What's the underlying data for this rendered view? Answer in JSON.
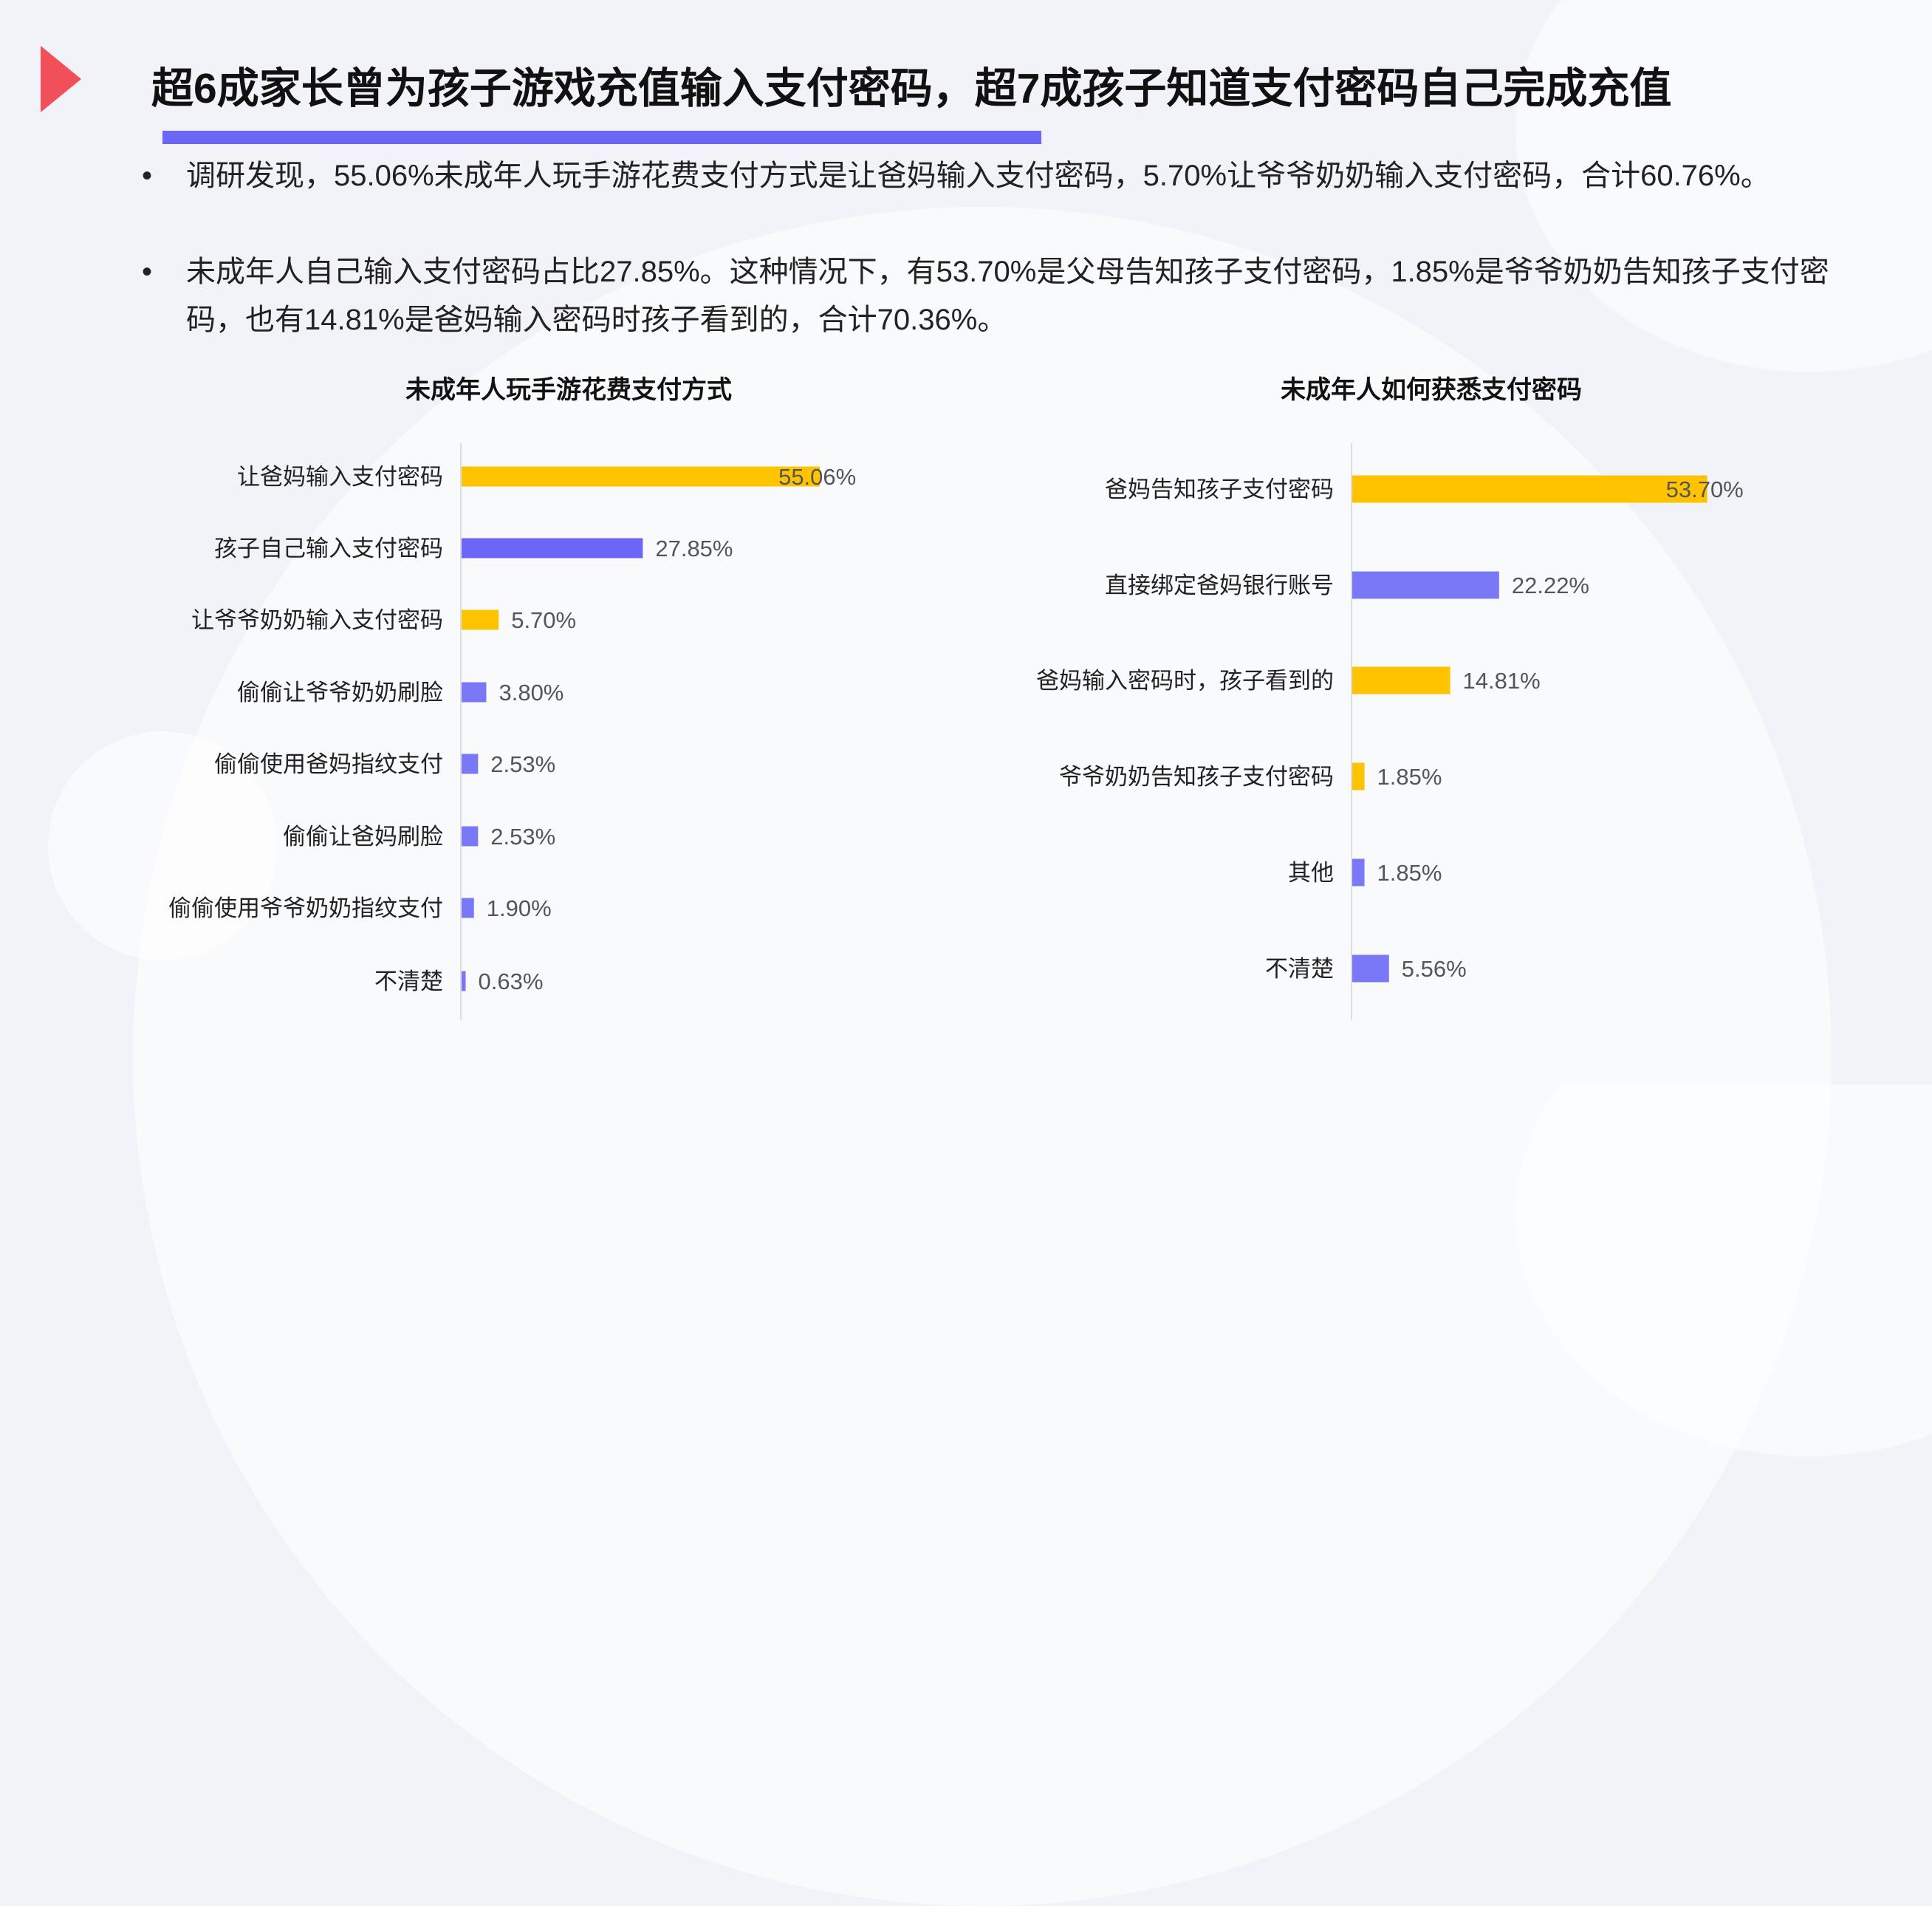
{
  "title": "超6成家长曾为孩子游戏充值输入支付密码，超7成孩子知道支付密码自己完成充值",
  "bullets": [
    "调研发现，55.06%未成年人玩手游花费支付方式是让爸妈输入支付密码，5.70%让爷爷奶奶输入支付密码，合计60.76%。",
    "未成年人自己输入支付密码占比27.85%。这种情况下，有53.70%是父母告知孩子支付密码，1.85%是爷爷奶奶告知孩子支付密码，也有14.81%是爸妈输入密码时孩子看到的，合计70.36%。"
  ],
  "bullet_symbol": "•",
  "colors": {
    "accent_red": "#f25058",
    "purple": "#6b66f5",
    "light_purple": "#7b78f7",
    "yellow": "#ffc300"
  },
  "chart_data": [
    {
      "type": "bar",
      "orientation": "horizontal",
      "title": "未成年人玩手游花费支付方式",
      "categories": [
        "让爸妈输入支付密码",
        "孩子自己输入支付密码",
        "让爷爷奶奶输入支付密码",
        "偷偷让爷爷奶奶刷脸",
        "偷偷使用爸妈指纹支付",
        "偷偷让爸妈刷脸",
        "偷偷使用爷爷奶奶指纹支付",
        "不清楚"
      ],
      "values": [
        55.06,
        27.85,
        5.7,
        3.8,
        2.53,
        2.53,
        1.9,
        0.63
      ],
      "labels": [
        "55.06%",
        "27.85%",
        "5.70%",
        "3.80%",
        "2.53%",
        "2.53%",
        "1.90%",
        "0.63%"
      ],
      "bar_colors": [
        "#ffc300",
        "#6b66f5",
        "#ffc300",
        "#7b78f7",
        "#7b78f7",
        "#7b78f7",
        "#7b78f7",
        "#7b78f7"
      ],
      "unit": "%",
      "grid": false
    },
    {
      "type": "bar",
      "orientation": "horizontal",
      "title": "未成年人如何获悉支付密码",
      "categories": [
        "爸妈告知孩子支付密码",
        "直接绑定爸妈银行账号",
        "爸妈输入密码时，孩子看到的",
        "爷爷奶奶告知孩子支付密码",
        "其他",
        "不清楚"
      ],
      "values": [
        53.7,
        22.22,
        14.81,
        1.85,
        1.85,
        5.56
      ],
      "labels": [
        "53.70%",
        "22.22%",
        "14.81%",
        "1.85%",
        "1.85%",
        "5.56%"
      ],
      "bar_colors": [
        "#ffc300",
        "#7b78f7",
        "#ffc300",
        "#ffc300",
        "#7b78f7",
        "#7b78f7"
      ],
      "unit": "%",
      "grid": false
    }
  ]
}
